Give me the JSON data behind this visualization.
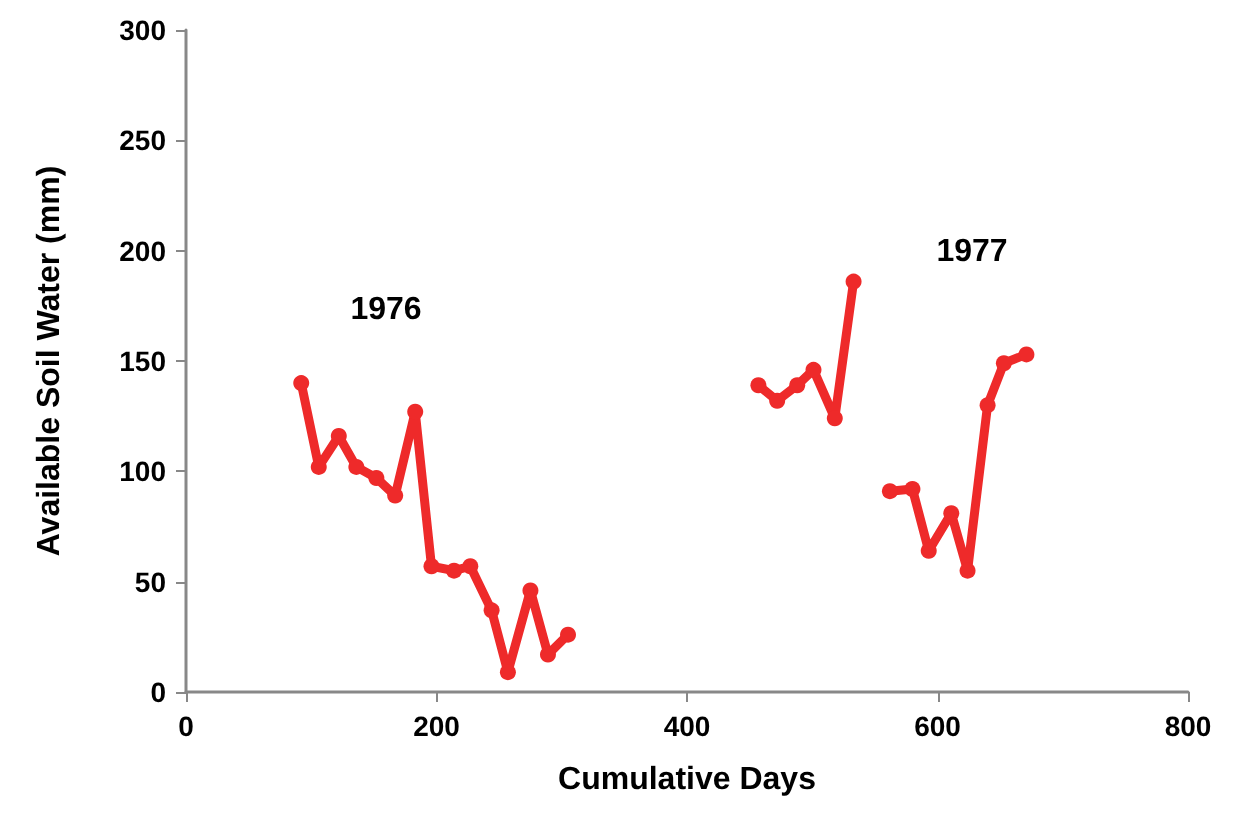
{
  "chart_data": {
    "type": "line",
    "xlabel": "Cumulative Days",
    "ylabel": "Available Soil Water (mm)",
    "xlim": [
      0,
      800
    ],
    "xticks": [
      0,
      200,
      400,
      600,
      800
    ],
    "ylim": [
      0,
      300
    ],
    "yticks": [
      0,
      50,
      100,
      150,
      200,
      250,
      300
    ],
    "grid": false,
    "marker": "circle",
    "line_style": "solid",
    "series": [
      {
        "color": "#ee2a2a",
        "x": [
          92,
          106,
          122,
          136,
          152,
          167,
          183,
          196,
          214,
          227,
          244,
          257,
          275,
          289,
          305
        ],
        "values": [
          140,
          102,
          116,
          102,
          97,
          89,
          127,
          57,
          55,
          57,
          37,
          9,
          46,
          17,
          26
        ]
      },
      {
        "color": "#ee2a2a",
        "x": [
          457,
          472,
          488,
          501,
          518,
          533
        ],
        "values": [
          139,
          132,
          139,
          146,
          124,
          186
        ]
      },
      {
        "color": "#ee2a2a",
        "x": [
          562,
          580,
          593,
          611,
          624,
          640,
          653,
          671
        ],
        "values": [
          91,
          92,
          64,
          81,
          55,
          130,
          149,
          153
        ]
      }
    ],
    "annotations": [
      "1976",
      "1977"
    ]
  }
}
